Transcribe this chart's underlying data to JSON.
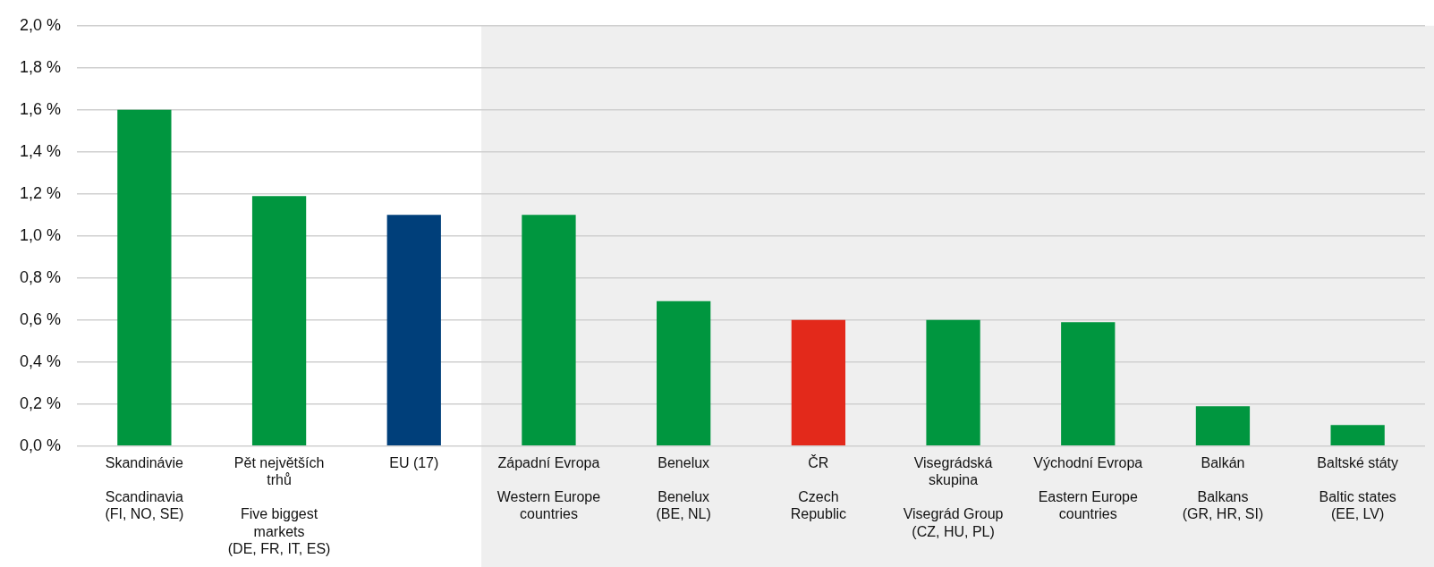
{
  "chart_data": {
    "type": "bar",
    "categories": [
      "Skandinávie\n\nScandinavia\n(FI, NO, SE)",
      "Pět největších\ntrhů\n\nFive biggest\nmarkets\n(DE, FR, IT, ES)",
      "EU (17)",
      "Západní Evropa\n\nWestern Europe\ncountries",
      "Benelux\n\nBenelux\n(BE, NL)",
      "ČR\n\nCzech\nRepublic",
      "Visegrádská\nskupina\n\nVisegrád Group\n(CZ, HU, PL)",
      "Východní Evropa\n\nEastern Europe\ncountries",
      "Balkán\n\nBalkans\n(GR, HR, SI)",
      "Baltské státy\n\nBaltic states\n(EE, LV)"
    ],
    "values": [
      1.6,
      1.19,
      1.1,
      1.1,
      0.69,
      0.6,
      0.6,
      0.59,
      0.19,
      0.1
    ],
    "colors": [
      "#00963f",
      "#00963f",
      "#003f7a",
      "#00963f",
      "#00963f",
      "#e3291b",
      "#00963f",
      "#00963f",
      "#00963f",
      "#00963f"
    ],
    "ylim": [
      0,
      2
    ],
    "yticks": [
      {
        "value": 0,
        "label": "0,0 %"
      },
      {
        "value": 0.2,
        "label": "0,2 %"
      },
      {
        "value": 0.4,
        "label": "0,4 %"
      },
      {
        "value": 0.6,
        "label": "0,6 %"
      },
      {
        "value": 0.8,
        "label": "0,8 %"
      },
      {
        "value": 1,
        "label": "1,0 %"
      },
      {
        "value": 1.2,
        "label": "1,2 %"
      },
      {
        "value": 1.4,
        "label": "1,4 %"
      },
      {
        "value": 1.6,
        "label": "1,6 %"
      },
      {
        "value": 1.8,
        "label": "1,8 %"
      },
      {
        "value": 2,
        "label": "2,0 %"
      }
    ],
    "bands": [
      {
        "axis": "x",
        "from": "Západní Evropa\n\nWestern Europe\ncountries",
        "to": "Baltské státy\n\nBaltic states\n(EE, LV)",
        "color": "#efefef"
      }
    ],
    "grid": "y",
    "legend": false
  }
}
